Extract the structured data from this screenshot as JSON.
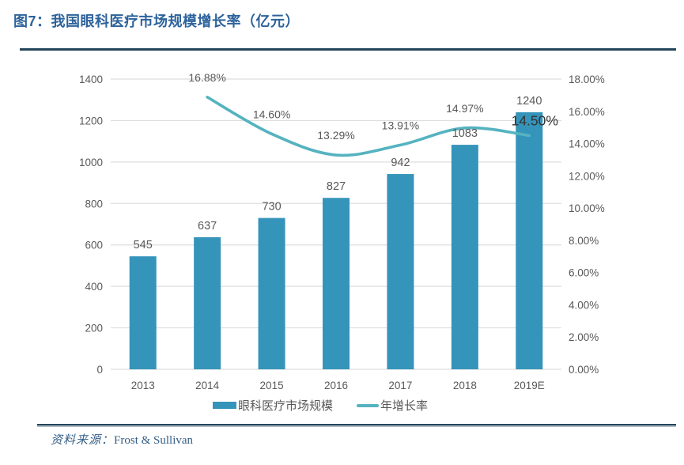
{
  "figure": {
    "title": "图7：我国眼科医疗市场规模增长率（亿元）",
    "source_label": "资料来源：",
    "source_value": "Frost & Sullivan"
  },
  "colors": {
    "bar": "#3594BA",
    "line": "#55B3C0",
    "title": "#2D639B",
    "rule": "#24465A",
    "axis_text": "#595959",
    "grid": "#DEDEDE",
    "source_text": "#355F87",
    "emphasis_label": "#333333"
  },
  "chart_data": {
    "type": "combo",
    "title": "图7：我国眼科医疗市场规模增长率（亿元）",
    "categories": [
      "2013",
      "2014",
      "2015",
      "2016",
      "2017",
      "2018",
      "2019E"
    ],
    "series": [
      {
        "name": "眼科医疗市场规模",
        "type": "bar",
        "axis": "left",
        "values": [
          545,
          637,
          730,
          827,
          942,
          1083,
          1240
        ],
        "labels": [
          "545",
          "637",
          "730",
          "827",
          "942",
          "1083",
          "1240"
        ]
      },
      {
        "name": "年增长率",
        "type": "line",
        "axis": "right",
        "values": [
          null,
          16.88,
          14.6,
          13.29,
          13.91,
          14.97,
          14.5
        ],
        "labels": [
          "",
          "16.88%",
          "14.60%",
          "13.29%",
          "13.91%",
          "14.97%",
          "14.50%"
        ]
      }
    ],
    "left_axis": {
      "min": 0,
      "max": 1400,
      "step": 200,
      "ticks": [
        "0",
        "200",
        "400",
        "600",
        "800",
        "1000",
        "1200",
        "1400"
      ]
    },
    "right_axis": {
      "min": 0,
      "max": 18,
      "step": 2,
      "ticks": [
        "0.00%",
        "2.00%",
        "4.00%",
        "6.00%",
        "8.00%",
        "10.00%",
        "12.00%",
        "14.00%",
        "16.00%",
        "18.00%"
      ]
    },
    "grid": true,
    "legend_position": "bottom"
  }
}
